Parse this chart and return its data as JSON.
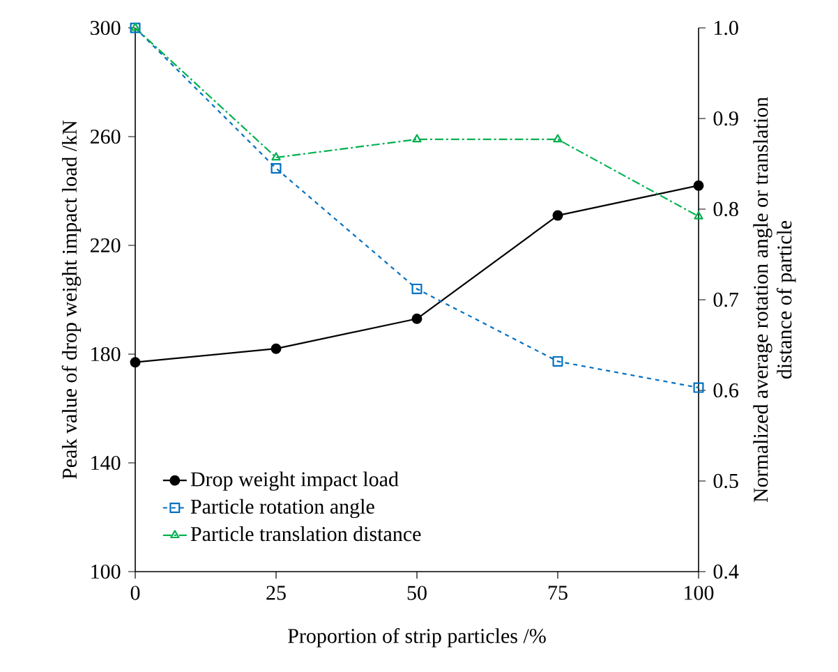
{
  "chart_data": {
    "type": "line",
    "xlabel": "Proportion of strip particles /%",
    "ylabel": "Peak value of drop weight impact load /kN",
    "y2label": "Normalized average rotation angle or translation distance of particle",
    "x": [
      0,
      25,
      50,
      75,
      100
    ],
    "xlim": [
      0,
      100
    ],
    "xticks": [
      0,
      25,
      50,
      75,
      100
    ],
    "ylim": [
      100,
      300
    ],
    "yticks": [
      100,
      140,
      180,
      220,
      260,
      300
    ],
    "y2lim": [
      0.4,
      1.0
    ],
    "y2ticks": [
      0.4,
      0.5,
      0.6,
      0.7,
      0.8,
      0.9,
      {
        "value": 1.0,
        "label": "1.0"
      }
    ],
    "grid": false,
    "legend": "bottom left",
    "series": [
      {
        "name": "Drop weight impact load",
        "color": "#000000",
        "values": [
          177,
          182,
          193,
          231,
          242
        ],
        "marker": "circle",
        "line_style": "solid"
      },
      {
        "name": "Particle rotation angle",
        "color": "#0070c0",
        "values": [
          1.0,
          0.845,
          0.712,
          0.632,
          0.603
        ],
        "axis": "y2",
        "marker": "square",
        "line_style": "dashed"
      },
      {
        "name": "Particle translation distance",
        "color": "#00b050",
        "values": [
          1.0,
          0.857,
          0.877,
          0.877,
          0.792
        ],
        "axis": "y2",
        "marker": "triangle",
        "line_style": "dashdotted"
      }
    ]
  }
}
